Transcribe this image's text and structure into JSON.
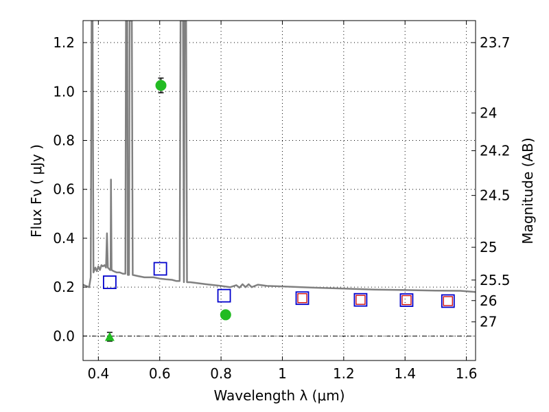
{
  "chart_data": {
    "type": "scatter",
    "xlabel": "Wavelength  λ (μm)",
    "ylabel": "Flux  Fν  ( μJy )",
    "ylabel_right": "Magnitude (AB)",
    "xlim": [
      0.35,
      1.63
    ],
    "ylim": [
      -0.1,
      1.29
    ],
    "grid": true,
    "x_ticks": [
      {
        "value": 0.4,
        "label": "0.4"
      },
      {
        "value": 0.6,
        "label": "0.6"
      },
      {
        "value": 0.8,
        "label": "0.8"
      },
      {
        "value": 1.0,
        "label": "1"
      },
      {
        "value": 1.2,
        "label": "1.2"
      },
      {
        "value": 1.4,
        "label": "1.4"
      },
      {
        "value": 1.6,
        "label": "1.6"
      }
    ],
    "y_ticks": [
      {
        "value": 0.0,
        "label": "0.0"
      },
      {
        "value": 0.2,
        "label": "0.2"
      },
      {
        "value": 0.4,
        "label": "0.4"
      },
      {
        "value": 0.6,
        "label": "0.6"
      },
      {
        "value": 0.8,
        "label": "0.8"
      },
      {
        "value": 1.0,
        "label": "1.0"
      },
      {
        "value": 1.2,
        "label": "1.2"
      }
    ],
    "right_ticks": [
      {
        "flux": 1.2,
        "label": "23.7"
      },
      {
        "flux": 0.912,
        "label": "24"
      },
      {
        "flux": 0.758,
        "label": "24.2"
      },
      {
        "flux": 0.575,
        "label": "24.5"
      },
      {
        "flux": 0.363,
        "label": "25"
      },
      {
        "flux": 0.229,
        "label": "25.5"
      },
      {
        "flux": 0.145,
        "label": "26"
      },
      {
        "flux": 0.058,
        "label": "27"
      }
    ],
    "spectrum": {
      "color": "#808080",
      "points": [
        [
          0.35,
          0.21
        ],
        [
          0.37,
          0.2
        ],
        [
          0.375,
          0.24
        ],
        [
          0.378,
          1.29
        ],
        [
          0.381,
          1.29
        ],
        [
          0.384,
          0.26
        ],
        [
          0.39,
          0.28
        ],
        [
          0.395,
          0.265
        ],
        [
          0.4,
          0.285
        ],
        [
          0.405,
          0.27
        ],
        [
          0.41,
          0.29
        ],
        [
          0.415,
          0.285
        ],
        [
          0.42,
          0.29
        ],
        [
          0.425,
          0.28
        ],
        [
          0.428,
          0.42
        ],
        [
          0.431,
          0.28
        ],
        [
          0.435,
          0.275
        ],
        [
          0.438,
          0.27
        ],
        [
          0.44,
          0.27
        ],
        [
          0.441,
          0.64
        ],
        [
          0.443,
          0.27
        ],
        [
          0.45,
          0.265
        ],
        [
          0.46,
          0.26
        ],
        [
          0.47,
          0.26
        ],
        [
          0.48,
          0.255
        ],
        [
          0.488,
          0.255
        ],
        [
          0.49,
          1.29
        ],
        [
          0.494,
          1.29
        ],
        [
          0.496,
          0.25
        ],
        [
          0.5,
          0.25
        ],
        [
          0.502,
          1.29
        ],
        [
          0.509,
          1.29
        ],
        [
          0.512,
          0.25
        ],
        [
          0.53,
          0.245
        ],
        [
          0.55,
          0.24
        ],
        [
          0.58,
          0.24
        ],
        [
          0.6,
          0.235
        ],
        [
          0.62,
          0.232
        ],
        [
          0.64,
          0.23
        ],
        [
          0.655,
          0.225
        ],
        [
          0.665,
          0.225
        ],
        [
          0.668,
          1.29
        ],
        [
          0.676,
          1.29
        ],
        [
          0.679,
          0.22
        ],
        [
          0.681,
          1.29
        ],
        [
          0.686,
          1.29
        ],
        [
          0.689,
          0.22
        ],
        [
          0.7,
          0.22
        ],
        [
          0.75,
          0.212
        ],
        [
          0.8,
          0.205
        ],
        [
          0.83,
          0.2
        ],
        [
          0.85,
          0.208
        ],
        [
          0.86,
          0.198
        ],
        [
          0.87,
          0.212
        ],
        [
          0.88,
          0.2
        ],
        [
          0.89,
          0.212
        ],
        [
          0.9,
          0.2
        ],
        [
          0.92,
          0.21
        ],
        [
          0.95,
          0.205
        ],
        [
          1.0,
          0.203
        ],
        [
          1.1,
          0.198
        ],
        [
          1.2,
          0.194
        ],
        [
          1.3,
          0.19
        ],
        [
          1.4,
          0.188
        ],
        [
          1.5,
          0.186
        ],
        [
          1.58,
          0.185
        ],
        [
          1.63,
          0.18
        ]
      ]
    },
    "series": [
      {
        "marker": "square",
        "color": "#0000cc",
        "points": [
          [
            0.437,
            0.22
          ],
          [
            0.602,
            0.275
          ],
          [
            0.81,
            0.165
          ],
          [
            1.065,
            0.155
          ],
          [
            1.255,
            0.148
          ],
          [
            1.405,
            0.147
          ],
          [
            1.54,
            0.143
          ]
        ]
      },
      {
        "marker": "small-square",
        "color": "#cc0000",
        "points": [
          [
            1.065,
            0.155
          ],
          [
            1.255,
            0.148
          ],
          [
            1.405,
            0.147
          ],
          [
            1.54,
            0.143
          ]
        ]
      },
      {
        "marker": "circle",
        "color": "#22bb22",
        "points": [
          {
            "x": 0.604,
            "y": 1.025,
            "yerr": 0.03
          },
          {
            "x": 0.815,
            "y": 0.087,
            "yerr": 0.012
          }
        ]
      },
      {
        "marker": "triangle",
        "color": "#22bb22",
        "points": [
          {
            "x": 0.437,
            "y": -0.003,
            "yerr": 0.018
          }
        ]
      }
    ]
  }
}
